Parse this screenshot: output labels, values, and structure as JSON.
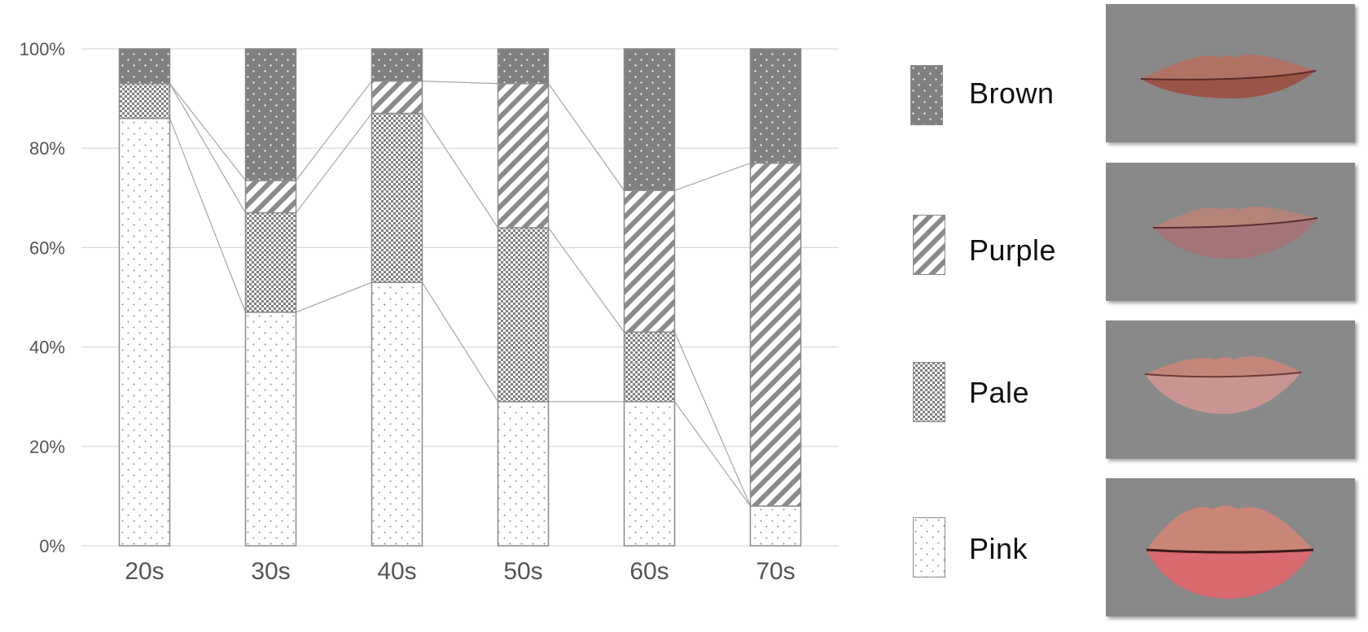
{
  "chart_data": {
    "type": "bar",
    "stacked": true,
    "categories": [
      "20s",
      "30s",
      "40s",
      "50s",
      "60s",
      "70s"
    ],
    "series": [
      {
        "name": "Pink",
        "pattern": "sparse-dots",
        "values": [
          86,
          47,
          53,
          29,
          29,
          8
        ]
      },
      {
        "name": "Pale",
        "pattern": "checker",
        "values": [
          7,
          20,
          34,
          35,
          14,
          0
        ]
      },
      {
        "name": "Purple",
        "pattern": "diagonal",
        "values": [
          0,
          6.5,
          6.5,
          29,
          28.5,
          69
        ]
      },
      {
        "name": "Brown",
        "pattern": "dark-dots",
        "values": [
          7,
          26.5,
          6.5,
          7,
          28.5,
          23
        ]
      }
    ],
    "y_ticks": [
      "0%",
      "20%",
      "40%",
      "60%",
      "80%",
      "100%"
    ],
    "ylim": [
      0,
      100
    ],
    "unit": "%",
    "grid": true,
    "legend_position": "right"
  },
  "legend": {
    "items": [
      {
        "label": "Brown",
        "pattern": "dark-dots"
      },
      {
        "label": "Purple",
        "pattern": "diagonal"
      },
      {
        "label": "Pale",
        "pattern": "checker"
      },
      {
        "label": "Pink",
        "pattern": "sparse-dots"
      }
    ]
  },
  "photos": [
    {
      "name": "brown-lips-photo",
      "lip_color": "#9a5548",
      "upper_color": "#b07264"
    },
    {
      "name": "purple-lips-photo",
      "lip_color": "#a37478",
      "upper_color": "#b48478"
    },
    {
      "name": "pale-lips-photo",
      "lip_color": "#c99592",
      "upper_color": "#c2877a"
    },
    {
      "name": "pink-lips-photo",
      "lip_color": "#d86a70",
      "upper_color": "#c98576"
    }
  ],
  "colors": {
    "gridline": "#d9d9d9",
    "bar_outline": "#8a8a8a",
    "pattern_dark": "#808080",
    "photo_background": "#898989",
    "connector": "#a6a6a6"
  }
}
